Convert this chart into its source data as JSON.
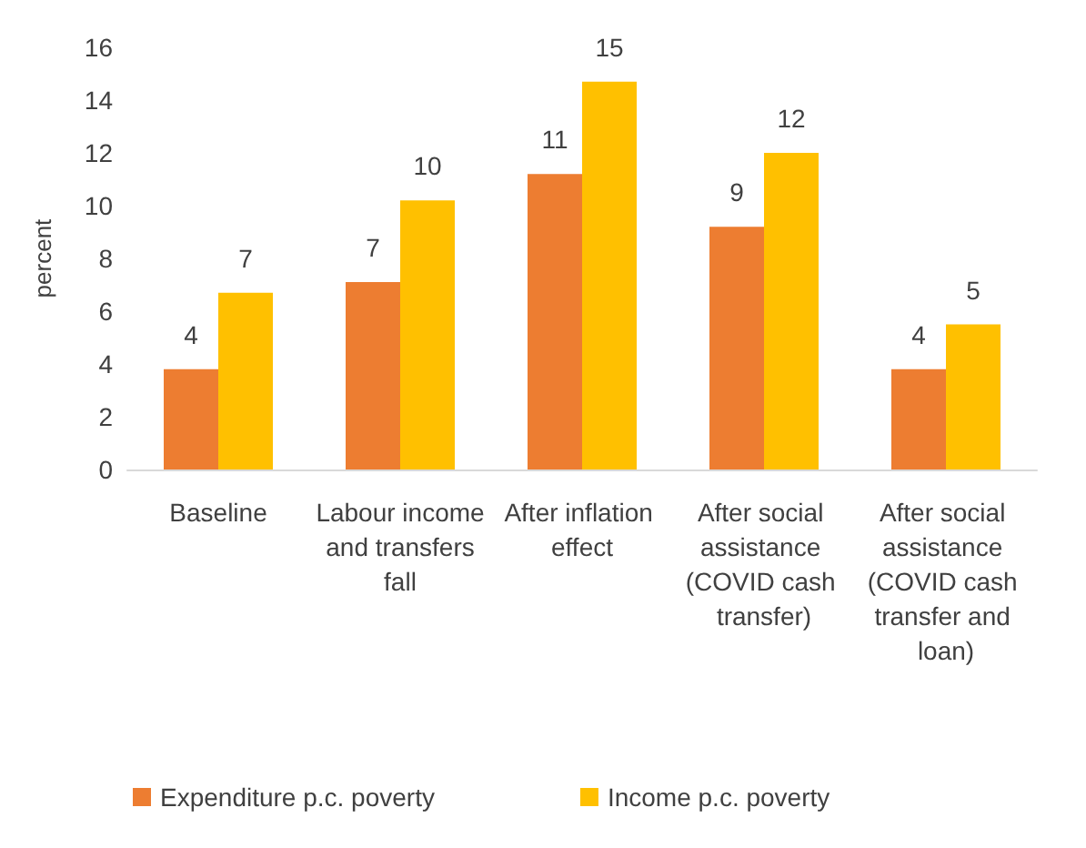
{
  "chart_data": {
    "type": "bar",
    "ylabel": "percent",
    "categories": [
      "Baseline",
      "Labour income and transfers fall",
      "After inflation effect",
      "After social assistance (COVID cash transfer)",
      "After social assistance (COVID cash transfer and loan)"
    ],
    "series": [
      {
        "name": "Expenditure p.c. poverty",
        "color": "#ed7d31",
        "values": [
          3.8,
          7.1,
          11.2,
          9.2,
          3.8
        ],
        "value_labels": [
          "4",
          "7",
          "11",
          "9",
          "4"
        ]
      },
      {
        "name": "Income p.c. poverty",
        "color": "#ffc000",
        "values": [
          6.7,
          10.2,
          14.7,
          12.0,
          5.5
        ],
        "value_labels": [
          "7",
          "10",
          "15",
          "12",
          "5"
        ]
      }
    ],
    "ylim": [
      0,
      16
    ],
    "yticks": [
      0,
      2,
      4,
      6,
      8,
      10,
      12,
      14,
      16
    ],
    "grid": false,
    "legend": "bottom"
  }
}
